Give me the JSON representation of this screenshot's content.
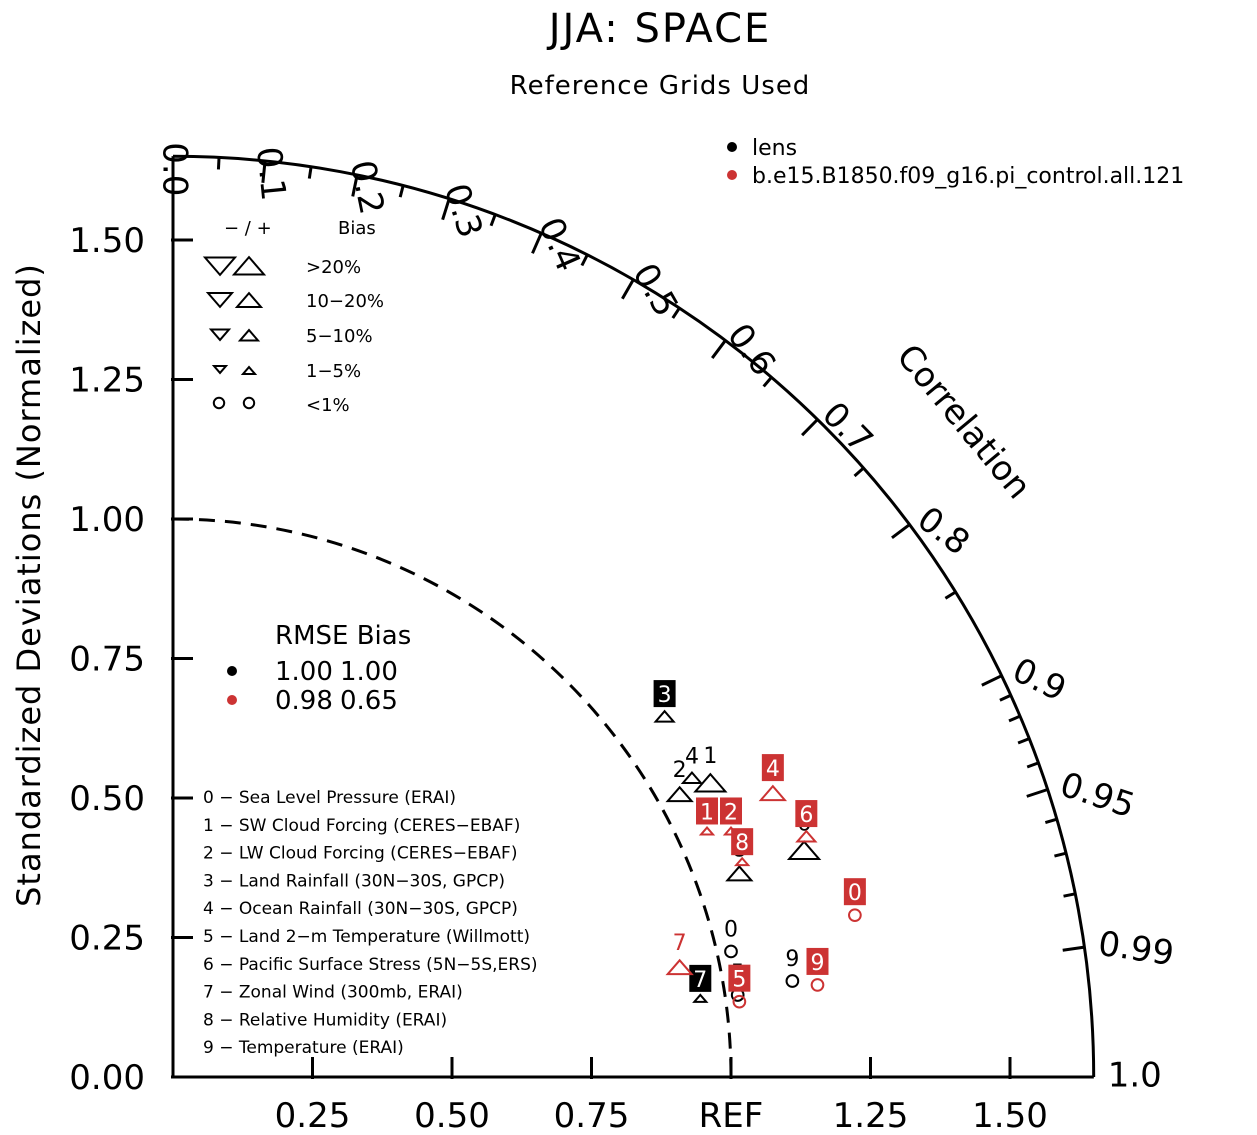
{
  "chart_data": {
    "type": "taylor",
    "title": "JJA: SPACE",
    "subtitle": "Reference Grids Used",
    "ylabel": "Standardized Deviations (Normalized)",
    "corr_label": "Correlation",
    "x_ticks": [
      "0.25",
      "0.50",
      "0.75",
      "REF",
      "1.25",
      "1.50"
    ],
    "y_ticks": [
      "0.00",
      "0.25",
      "0.50",
      "0.75",
      "1.00",
      "1.25",
      "1.50"
    ],
    "corr_ticks": [
      "0.0",
      "0.1",
      "0.2",
      "0.3",
      "0.4",
      "0.5",
      "0.6",
      "0.7",
      "0.8",
      "0.9",
      "0.95",
      "0.99",
      "1.0"
    ],
    "std_max": 1.65,
    "ref_std": 1.0,
    "bias_legend": {
      "header_signs": "− / +",
      "header_label": "Bias",
      "rows": [
        ">20%",
        "10−20%",
        "5−10%",
        "1−5%",
        "<1%"
      ]
    },
    "series": [
      {
        "name": "lens",
        "color": "#000000"
      },
      {
        "name": "b.e15.B1850.f09_g16.pi_control.all.121",
        "color": "#cc3333"
      }
    ],
    "stats": {
      "header": "RMSE  Bias",
      "rows": [
        {
          "series": "lens",
          "rmse": "1.00",
          "bias": "1.00"
        },
        {
          "series": "b.e15.B1850.f09_g16.pi_control.all.121",
          "rmse": "0.98",
          "bias": "0.65"
        }
      ]
    },
    "variables": [
      "0 − Sea Level Pressure (ERAI)",
      "1 − SW Cloud Forcing (CERES−EBAF)",
      "2 − LW Cloud Forcing (CERES−EBAF)",
      "3 − Land Rainfall (30N−30S, GPCP)",
      "4 − Ocean Rainfall (30N−30S, GPCP)",
      "5 − Land 2−m Temperature (Willmott)",
      "6 − Pacific Surface Stress (5N−5S,ERS)",
      "7 − Zonal Wind (300mb, ERAI)",
      "8 − Relative Humidity (ERAI)",
      "9 − Temperature (ERAI)"
    ],
    "points": [
      {
        "series": 0,
        "var": "0",
        "x": 1.0,
        "y": 0.225,
        "marker": "circle",
        "size": "s",
        "boxed": false
      },
      {
        "series": 0,
        "var": "1",
        "x": 0.963,
        "y": 0.525,
        "marker": "up",
        "size": "l",
        "boxed": false
      },
      {
        "series": 0,
        "var": "2",
        "x": 0.908,
        "y": 0.505,
        "marker": "up",
        "size": "m",
        "boxed": false
      },
      {
        "series": 0,
        "var": "3",
        "x": 0.881,
        "y": 0.645,
        "marker": "up",
        "size": "s",
        "boxed": true
      },
      {
        "series": 0,
        "var": "4",
        "x": 0.93,
        "y": 0.535,
        "marker": "up",
        "size": "s",
        "boxed": false
      },
      {
        "series": 0,
        "var": "5",
        "x": 1.012,
        "y": 0.147,
        "marker": "circle",
        "size": "s",
        "boxed": false
      },
      {
        "series": 0,
        "var": "6",
        "x": 1.131,
        "y": 0.404,
        "marker": "up",
        "size": "l",
        "boxed": false
      },
      {
        "series": 0,
        "var": "7",
        "x": 0.945,
        "y": 0.14,
        "marker": "up",
        "size": "xs",
        "boxed": true
      },
      {
        "series": 0,
        "var": "8",
        "x": 1.015,
        "y": 0.363,
        "marker": "up",
        "size": "m",
        "boxed": false
      },
      {
        "series": 0,
        "var": "9",
        "x": 1.11,
        "y": 0.172,
        "marker": "circle",
        "size": "s",
        "boxed": false
      },
      {
        "series": 1,
        "var": "0",
        "x": 1.222,
        "y": 0.29,
        "marker": "circle",
        "size": "s",
        "boxed": true
      },
      {
        "series": 1,
        "var": "1",
        "x": 0.957,
        "y": 0.44,
        "marker": "up",
        "size": "xs",
        "boxed": true
      },
      {
        "series": 1,
        "var": "2",
        "x": 1.0,
        "y": 0.44,
        "marker": "up",
        "size": "xs",
        "boxed": true
      },
      {
        "series": 1,
        "var": "4",
        "x": 1.075,
        "y": 0.507,
        "marker": "up",
        "size": "m",
        "boxed": true
      },
      {
        "series": 1,
        "var": "5",
        "x": 1.015,
        "y": 0.135,
        "marker": "circle",
        "size": "s",
        "boxed": true
      },
      {
        "series": 1,
        "var": "6",
        "x": 1.135,
        "y": 0.43,
        "marker": "up",
        "size": "s",
        "boxed": true
      },
      {
        "series": 1,
        "var": "7",
        "x": 0.908,
        "y": 0.195,
        "marker": "up",
        "size": "m",
        "boxed": false
      },
      {
        "series": 1,
        "var": "8",
        "x": 1.02,
        "y": 0.385,
        "marker": "up",
        "size": "xs",
        "boxed": true
      },
      {
        "series": 1,
        "var": "9",
        "x": 1.155,
        "y": 0.165,
        "marker": "circle",
        "size": "s",
        "boxed": true
      }
    ]
  }
}
